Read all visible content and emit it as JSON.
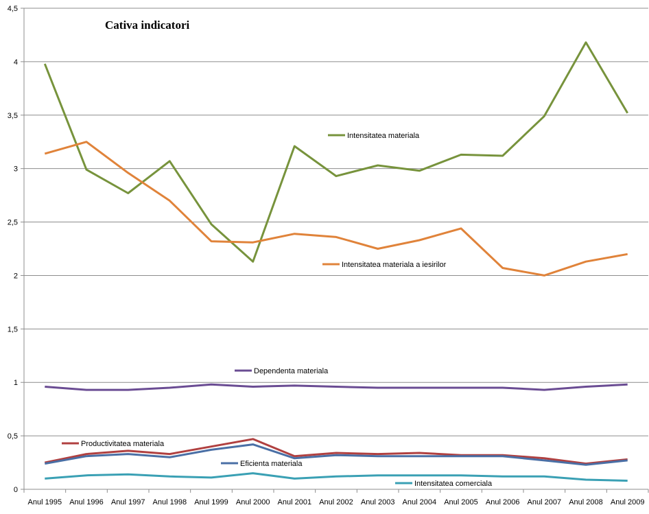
{
  "chart_data": {
    "type": "line",
    "title": "Cativa indicatori",
    "xlabel": "",
    "ylabel": "",
    "ylim": [
      0,
      4.5
    ],
    "yticks": [
      "0",
      "0,5",
      "1",
      "1,5",
      "2",
      "2,5",
      "3",
      "3,5",
      "4",
      "4,5"
    ],
    "grid": true,
    "categories": [
      "Anul 1995",
      "Anul 1996",
      "Anul 1997",
      "Anul 1998",
      "Anul 1999",
      "Anul 2000",
      "Anul 2001",
      "Anul 2002",
      "Anul 2003",
      "Anul 2004",
      "Anul 2005",
      "Anul 2006",
      "Anul 2007",
      "Anul 2008",
      "Anul 2009"
    ],
    "series": [
      {
        "name": "Intensitatea materiala",
        "color": "#77933c",
        "values": [
          3.98,
          2.99,
          2.77,
          3.07,
          2.48,
          2.13,
          3.21,
          2.93,
          3.03,
          2.98,
          3.13,
          3.12,
          3.49,
          4.18,
          3.52
        ]
      },
      {
        "name": "Intensitatea materiala a iesirilor",
        "color": "#e0833a",
        "values": [
          3.14,
          3.25,
          2.96,
          2.7,
          2.32,
          2.31,
          2.39,
          2.36,
          2.25,
          2.33,
          2.44,
          2.07,
          2.0,
          2.13,
          2.2
        ]
      },
      {
        "name": "Dependenta materiala",
        "color": "#6a4c93",
        "values": [
          0.96,
          0.93,
          0.93,
          0.95,
          0.98,
          0.96,
          0.97,
          0.96,
          0.95,
          0.95,
          0.95,
          0.95,
          0.93,
          0.96,
          0.98
        ]
      },
      {
        "name": "Productivitatea materiala",
        "color": "#b04040",
        "values": [
          0.25,
          0.33,
          0.36,
          0.33,
          0.4,
          0.47,
          0.31,
          0.34,
          0.33,
          0.34,
          0.32,
          0.32,
          0.29,
          0.24,
          0.28
        ]
      },
      {
        "name": "Eficienta materiala",
        "color": "#4a6fa5",
        "values": [
          0.24,
          0.31,
          0.33,
          0.3,
          0.37,
          0.42,
          0.29,
          0.32,
          0.31,
          0.31,
          0.31,
          0.31,
          0.27,
          0.23,
          0.27
        ]
      },
      {
        "name": "Intensitatea comerciala",
        "color": "#3aa0b4",
        "values": [
          0.1,
          0.13,
          0.14,
          0.12,
          0.11,
          0.15,
          0.1,
          0.12,
          0.13,
          0.13,
          0.13,
          0.12,
          0.12,
          0.09,
          0.08
        ]
      }
    ]
  }
}
